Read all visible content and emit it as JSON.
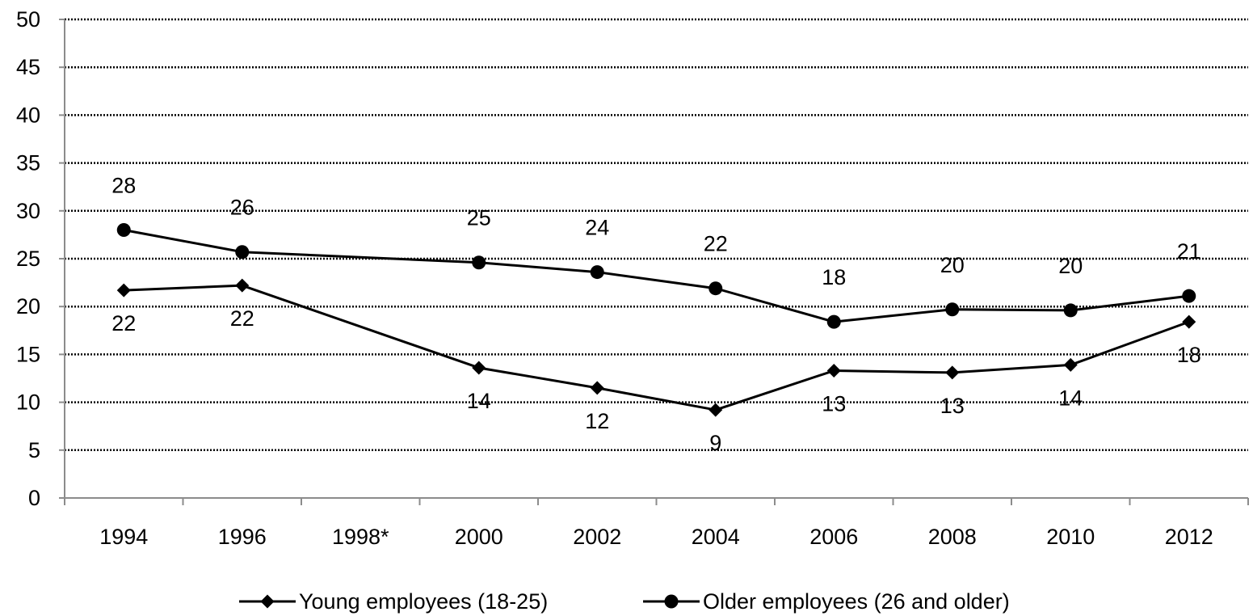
{
  "chart_data": {
    "type": "line",
    "categories": [
      "1994",
      "1996",
      "1998*",
      "2000",
      "2002",
      "2004",
      "2006",
      "2008",
      "2010",
      "2012"
    ],
    "series": [
      {
        "name": "Young employees (18-25)",
        "marker": "diamond",
        "values": [
          21.7,
          22.2,
          null,
          13.6,
          11.5,
          9.2,
          13.3,
          13.1,
          13.9,
          18.4
        ],
        "labels": [
          "22",
          "22",
          null,
          "14",
          "12",
          "9",
          "13",
          "13",
          "14",
          "18"
        ],
        "label_position": "below"
      },
      {
        "name": "Older employees (26 and older)",
        "marker": "circle",
        "values": [
          28.0,
          25.7,
          null,
          24.6,
          23.6,
          21.9,
          18.4,
          19.7,
          19.6,
          21.1
        ],
        "labels": [
          "28",
          "26",
          null,
          "25",
          "24",
          "22",
          "18",
          "20",
          "20",
          "21"
        ],
        "label_position": "above"
      }
    ],
    "ylim": [
      0,
      50
    ],
    "yticks": [
      0,
      5,
      10,
      15,
      20,
      25,
      30,
      35,
      40,
      45,
      50
    ],
    "grid": true,
    "grid_style": "dotted",
    "legend_position": "bottom",
    "line_color": "#000000",
    "title": "",
    "xlabel": "",
    "ylabel": ""
  }
}
